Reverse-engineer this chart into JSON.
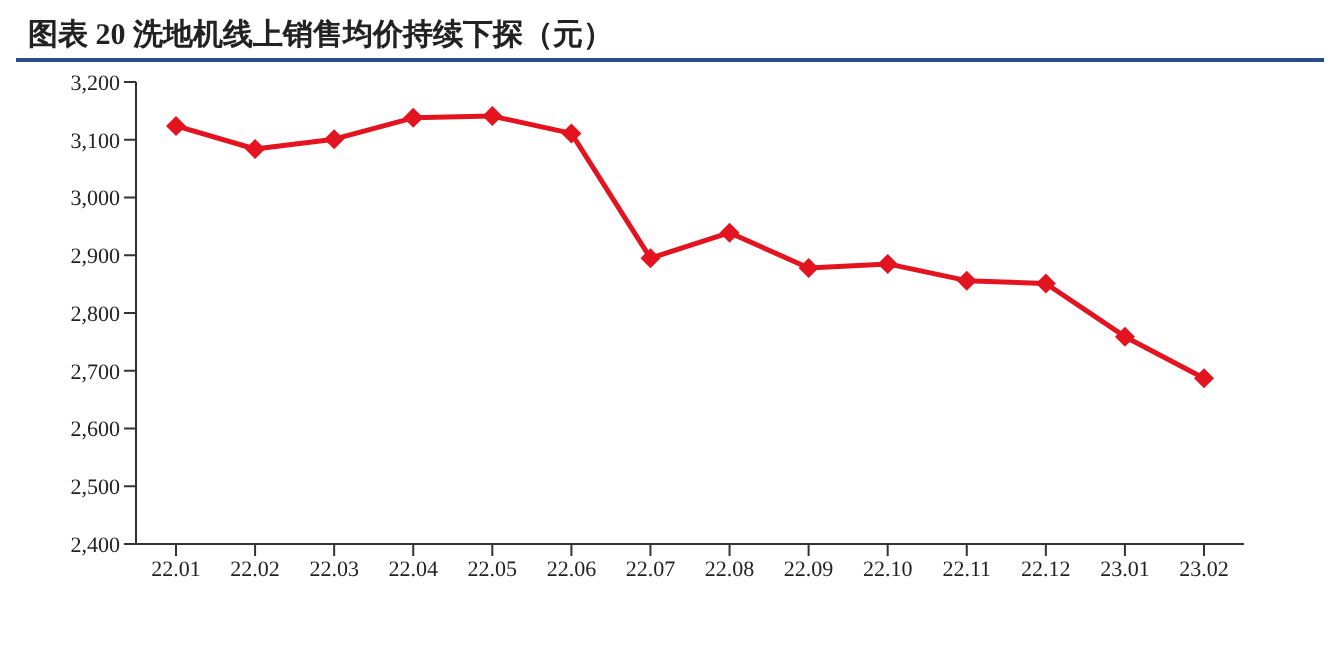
{
  "chart_data": {
    "type": "line",
    "title": "图表 20  洗地机线上销售均价持续下探（元）",
    "categories": [
      "22.01",
      "22.02",
      "22.03",
      "22.04",
      "22.05",
      "22.06",
      "22.07",
      "22.08",
      "22.09",
      "22.10",
      "22.11",
      "22.12",
      "23.01",
      "23.02"
    ],
    "series": [
      {
        "color": "#e3141f",
        "values": [
          3124,
          3084,
          3101,
          3138,
          3141,
          3111,
          2895,
          2939,
          2878,
          2885,
          2856,
          2851,
          2759,
          2687
        ]
      }
    ],
    "ylim": [
      2400,
      3200
    ],
    "yticks": [
      {
        "value": 2400,
        "label": "2,400"
      },
      {
        "value": 2500,
        "label": "2,500"
      },
      {
        "value": 2600,
        "label": "2,600"
      },
      {
        "value": 2700,
        "label": "2,700"
      },
      {
        "value": 2800,
        "label": "2,800"
      },
      {
        "value": 2900,
        "label": "2,900"
      },
      {
        "value": 3000,
        "label": "3,000"
      },
      {
        "value": 3100,
        "label": "3,100"
      },
      {
        "value": 3200,
        "label": "3,200"
      }
    ],
    "grid": false,
    "legend": false,
    "marker": "diamond",
    "line_style": "solid"
  }
}
